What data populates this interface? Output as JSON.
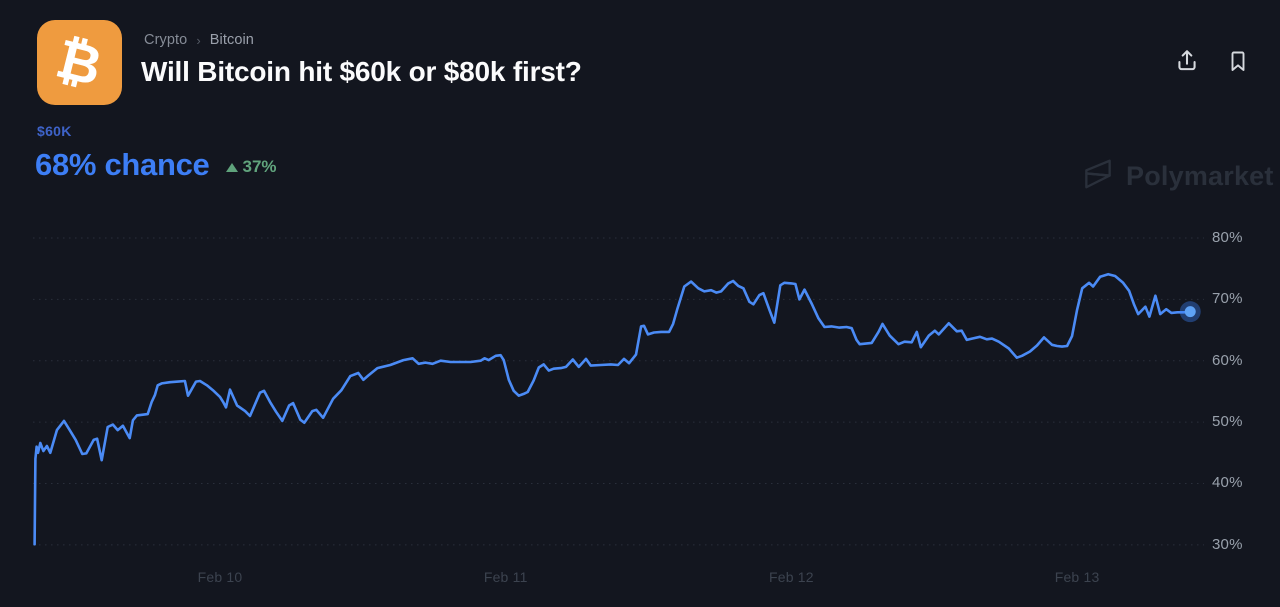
{
  "header": {
    "breadcrumb": {
      "section": "Crypto",
      "separator": "›",
      "page": "Bitcoin"
    },
    "title": "Will Bitcoin hit $60k or $80k first?",
    "market_icon": {
      "name": "bitcoin-icon",
      "symbol": "₿",
      "background": "#EF9B3F"
    },
    "actions": {
      "share": "share-icon",
      "bookmark": "bookmark-icon"
    }
  },
  "market": {
    "outcome_label": "$60K",
    "outcome_color": "#3E63C9",
    "chance_text": "68% chance",
    "chance_color": "#3D7EF5",
    "change_direction": "up",
    "change_text": "37%",
    "change_color": "#61A47D"
  },
  "watermark": {
    "text": "Polymarket",
    "color": "#2A303B"
  },
  "chart_data": {
    "type": "line",
    "title": "",
    "xlabel": "",
    "ylabel": "",
    "grid": "horizontal-dotted",
    "legend": "none",
    "ylim": [
      27,
      83
    ],
    "x_range_days": [
      9.35,
      13.42
    ],
    "y_ticks": [
      {
        "value": 80,
        "label": "80%"
      },
      {
        "value": 70,
        "label": "70%"
      },
      {
        "value": 60,
        "label": "60%"
      },
      {
        "value": 50,
        "label": "50%"
      },
      {
        "value": 40,
        "label": "40%"
      },
      {
        "value": 30,
        "label": "30%"
      }
    ],
    "x_ticks": [
      {
        "day": 10,
        "label": "Feb 10"
      },
      {
        "day": 11,
        "label": "Feb 11"
      },
      {
        "day": 12,
        "label": "Feb 12"
      },
      {
        "day": 13,
        "label": "Feb 13"
      }
    ],
    "series": [
      {
        "name": "$60K",
        "color": "#4B8BF5",
        "points": [
          [
            9.351,
            30.1
          ],
          [
            9.354,
            44.0
          ],
          [
            9.358,
            46.0
          ],
          [
            9.363,
            45.0
          ],
          [
            9.371,
            46.6
          ],
          [
            9.382,
            45.3
          ],
          [
            9.394,
            46.1
          ],
          [
            9.406,
            45.0
          ],
          [
            9.429,
            48.7
          ],
          [
            9.454,
            50.2
          ],
          [
            9.474,
            48.7
          ],
          [
            9.495,
            47.1
          ],
          [
            9.518,
            44.8
          ],
          [
            9.532,
            44.9
          ],
          [
            9.558,
            47.1
          ],
          [
            9.57,
            47.3
          ],
          [
            9.586,
            43.8
          ],
          [
            9.607,
            49.2
          ],
          [
            9.625,
            49.6
          ],
          [
            9.642,
            48.7
          ],
          [
            9.66,
            49.4
          ],
          [
            9.684,
            47.4
          ],
          [
            9.695,
            50.3
          ],
          [
            9.709,
            51.1
          ],
          [
            9.73,
            51.2
          ],
          [
            9.747,
            51.3
          ],
          [
            9.761,
            53.3
          ],
          [
            9.772,
            54.4
          ],
          [
            9.782,
            56.0
          ],
          [
            9.796,
            56.3
          ],
          [
            9.825,
            56.5
          ],
          [
            9.853,
            56.6
          ],
          [
            9.877,
            56.7
          ],
          [
            9.888,
            54.3
          ],
          [
            9.916,
            56.6
          ],
          [
            9.93,
            56.7
          ],
          [
            9.954,
            56.0
          ],
          [
            9.975,
            55.2
          ],
          [
            10.0,
            54.1
          ],
          [
            10.011,
            53.3
          ],
          [
            10.021,
            52.4
          ],
          [
            10.035,
            55.3
          ],
          [
            10.06,
            52.7
          ],
          [
            10.088,
            51.8
          ],
          [
            10.105,
            51.0
          ],
          [
            10.14,
            54.8
          ],
          [
            10.154,
            55.1
          ],
          [
            10.175,
            53.3
          ],
          [
            10.196,
            51.7
          ],
          [
            10.218,
            50.2
          ],
          [
            10.242,
            52.7
          ],
          [
            10.256,
            53.1
          ],
          [
            10.281,
            50.4
          ],
          [
            10.295,
            49.9
          ],
          [
            10.323,
            51.8
          ],
          [
            10.337,
            52.0
          ],
          [
            10.361,
            50.7
          ],
          [
            10.396,
            53.8
          ],
          [
            10.425,
            55.2
          ],
          [
            10.456,
            57.5
          ],
          [
            10.484,
            58.0
          ],
          [
            10.502,
            56.9
          ],
          [
            10.519,
            57.6
          ],
          [
            10.551,
            58.8
          ],
          [
            10.596,
            59.3
          ],
          [
            10.642,
            60.1
          ],
          [
            10.674,
            60.4
          ],
          [
            10.695,
            59.5
          ],
          [
            10.719,
            59.7
          ],
          [
            10.744,
            59.5
          ],
          [
            10.772,
            60.0
          ],
          [
            10.807,
            59.8
          ],
          [
            10.842,
            59.8
          ],
          [
            10.877,
            59.8
          ],
          [
            10.912,
            60.0
          ],
          [
            10.926,
            60.4
          ],
          [
            10.94,
            60.1
          ],
          [
            10.965,
            60.8
          ],
          [
            10.982,
            60.9
          ],
          [
            10.993,
            60.1
          ],
          [
            11.011,
            56.9
          ],
          [
            11.028,
            55.1
          ],
          [
            11.046,
            54.3
          ],
          [
            11.063,
            54.6
          ],
          [
            11.077,
            54.9
          ],
          [
            11.098,
            56.8
          ],
          [
            11.116,
            58.9
          ],
          [
            11.133,
            59.4
          ],
          [
            11.151,
            58.4
          ],
          [
            11.168,
            58.7
          ],
          [
            11.193,
            58.8
          ],
          [
            11.211,
            59.0
          ],
          [
            11.235,
            60.2
          ],
          [
            11.256,
            59.0
          ],
          [
            11.281,
            60.3
          ],
          [
            11.298,
            59.2
          ],
          [
            11.333,
            59.3
          ],
          [
            11.368,
            59.4
          ],
          [
            11.393,
            59.3
          ],
          [
            11.414,
            60.3
          ],
          [
            11.432,
            59.6
          ],
          [
            11.456,
            61.0
          ],
          [
            11.474,
            65.6
          ],
          [
            11.484,
            65.7
          ],
          [
            11.498,
            64.3
          ],
          [
            11.519,
            64.6
          ],
          [
            11.544,
            64.7
          ],
          [
            11.572,
            64.7
          ],
          [
            11.586,
            66.0
          ],
          [
            11.6,
            68.3
          ],
          [
            11.625,
            72.1
          ],
          [
            11.649,
            72.9
          ],
          [
            11.674,
            71.8
          ],
          [
            11.695,
            71.3
          ],
          [
            11.719,
            71.5
          ],
          [
            11.737,
            71.1
          ],
          [
            11.754,
            71.3
          ],
          [
            11.779,
            72.6
          ],
          [
            11.796,
            73.0
          ],
          [
            11.814,
            72.2
          ],
          [
            11.832,
            71.8
          ],
          [
            11.853,
            69.6
          ],
          [
            11.867,
            69.2
          ],
          [
            11.888,
            70.7
          ],
          [
            11.902,
            71.0
          ],
          [
            11.923,
            68.3
          ],
          [
            11.94,
            66.2
          ],
          [
            11.961,
            72.3
          ],
          [
            11.975,
            72.7
          ],
          [
            12.0,
            72.6
          ],
          [
            12.014,
            72.5
          ],
          [
            12.028,
            70.0
          ],
          [
            12.046,
            71.6
          ],
          [
            12.07,
            69.4
          ],
          [
            12.095,
            66.9
          ],
          [
            12.116,
            65.5
          ],
          [
            12.14,
            65.6
          ],
          [
            12.168,
            65.4
          ],
          [
            12.193,
            65.5
          ],
          [
            12.211,
            65.3
          ],
          [
            12.228,
            63.4
          ],
          [
            12.239,
            62.7
          ],
          [
            12.26,
            62.8
          ],
          [
            12.281,
            62.9
          ],
          [
            12.305,
            64.7
          ],
          [
            12.319,
            66.0
          ],
          [
            12.344,
            64.1
          ],
          [
            12.375,
            62.7
          ],
          [
            12.396,
            63.1
          ],
          [
            12.421,
            63.0
          ],
          [
            12.439,
            64.7
          ],
          [
            12.453,
            62.2
          ],
          [
            12.481,
            64.1
          ],
          [
            12.502,
            64.9
          ],
          [
            12.516,
            64.3
          ],
          [
            12.551,
            66.1
          ],
          [
            12.579,
            64.8
          ],
          [
            12.596,
            64.9
          ],
          [
            12.614,
            63.4
          ],
          [
            12.632,
            63.6
          ],
          [
            12.66,
            63.9
          ],
          [
            12.684,
            63.5
          ],
          [
            12.702,
            63.6
          ],
          [
            12.726,
            63.1
          ],
          [
            12.761,
            62.0
          ],
          [
            12.789,
            60.5
          ],
          [
            12.807,
            60.8
          ],
          [
            12.835,
            61.5
          ],
          [
            12.86,
            62.5
          ],
          [
            12.884,
            63.8
          ],
          [
            12.912,
            62.6
          ],
          [
            12.93,
            62.4
          ],
          [
            12.947,
            62.3
          ],
          [
            12.965,
            62.4
          ],
          [
            12.982,
            64.0
          ],
          [
            13.0,
            68.3
          ],
          [
            13.018,
            71.8
          ],
          [
            13.042,
            72.7
          ],
          [
            13.056,
            72.1
          ],
          [
            13.081,
            73.7
          ],
          [
            13.109,
            74.1
          ],
          [
            13.133,
            73.8
          ],
          [
            13.161,
            72.7
          ],
          [
            13.182,
            71.4
          ],
          [
            13.2,
            69.1
          ],
          [
            13.214,
            67.6
          ],
          [
            13.239,
            68.8
          ],
          [
            13.253,
            67.2
          ],
          [
            13.274,
            70.6
          ],
          [
            13.291,
            67.6
          ],
          [
            13.312,
            68.4
          ],
          [
            13.33,
            67.8
          ],
          [
            13.351,
            67.9
          ],
          [
            13.375,
            67.9
          ],
          [
            13.396,
            68.0
          ]
        ]
      }
    ],
    "end_marker": {
      "day": 13.396,
      "value": 68,
      "core_color": "#5EA2F5",
      "halo_color": "rgba(59,130,246,0.38)"
    },
    "gridline_color": "#2A2F3B",
    "y_label_color": "#99A1AC",
    "x_label_color": "#3C434F"
  }
}
